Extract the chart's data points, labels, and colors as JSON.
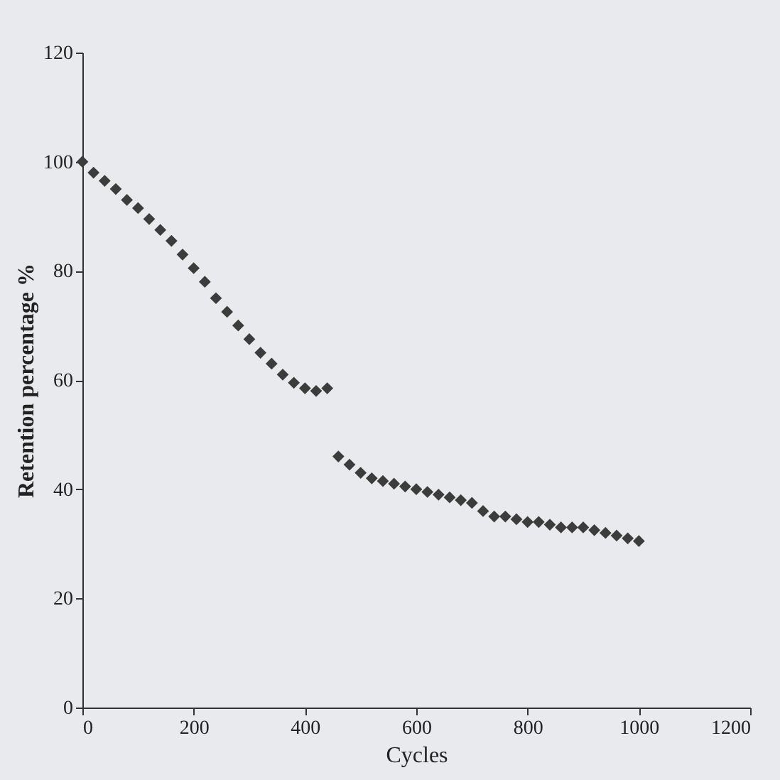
{
  "chart_data": {
    "type": "scatter",
    "xlabel": "Cycles",
    "ylabel": "Retention percentage %",
    "marker": "diamond",
    "grid": false,
    "legend": false,
    "xlim": [
      0,
      1200
    ],
    "xticks": [
      0,
      200,
      400,
      600,
      800,
      1000,
      1200
    ],
    "ylim": [
      0,
      120
    ],
    "yticks": [
      0,
      20,
      40,
      60,
      80,
      100,
      120
    ],
    "x": [
      0,
      20,
      40,
      60,
      80,
      100,
      120,
      140,
      160,
      180,
      200,
      220,
      240,
      260,
      280,
      300,
      320,
      340,
      360,
      380,
      400,
      420,
      440,
      460,
      480,
      500,
      520,
      540,
      560,
      580,
      600,
      620,
      640,
      660,
      680,
      700,
      720,
      740,
      760,
      780,
      800,
      820,
      840,
      860,
      880,
      900,
      920,
      940,
      960,
      980,
      1000
    ],
    "series": [
      {
        "color": "#3c3c3c",
        "values": [
          100,
          98,
          96.5,
          95,
          93,
          91.5,
          89.5,
          87.5,
          85.5,
          83,
          80.5,
          78,
          75,
          72.5,
          70,
          67.5,
          65,
          63,
          61,
          59.5,
          58.5,
          58,
          58.5,
          46,
          44.5,
          43,
          42,
          41.5,
          41,
          40.5,
          40,
          39.5,
          39,
          38.5,
          38,
          37.5,
          36,
          35,
          35,
          34.5,
          34,
          34,
          33.5,
          33,
          33,
          33,
          32.5,
          32,
          31.5,
          31,
          30.5
        ]
      }
    ]
  }
}
